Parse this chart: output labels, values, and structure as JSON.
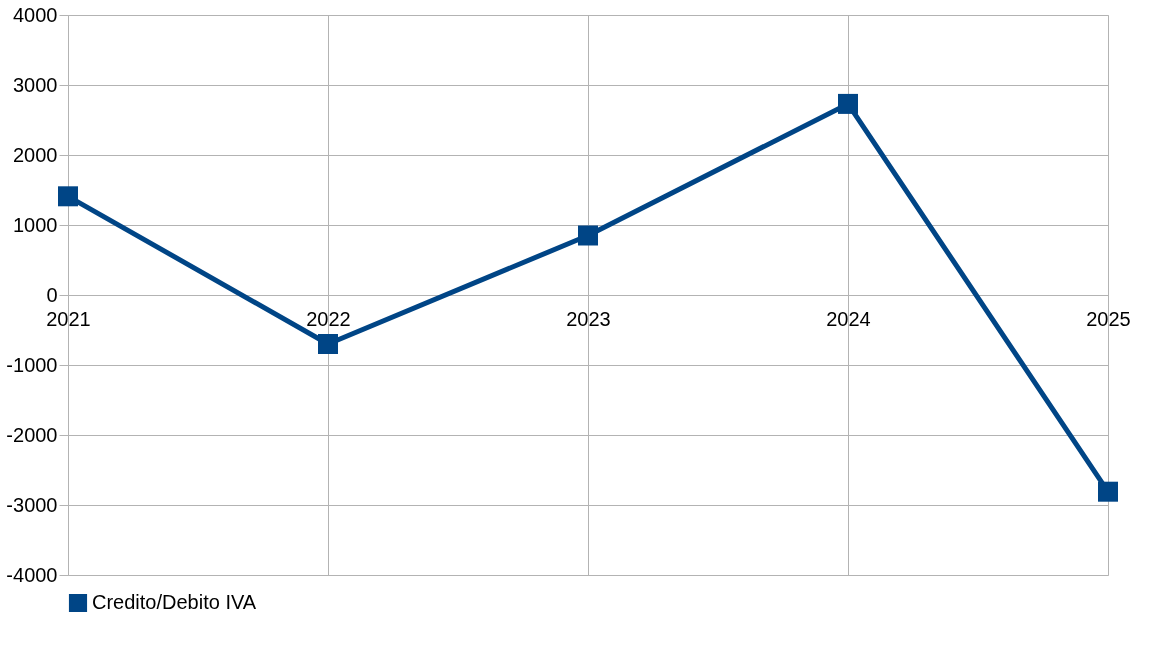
{
  "chart_data": {
    "type": "line",
    "categories": [
      "2021",
      "2022",
      "2023",
      "2024",
      "2025"
    ],
    "series": [
      {
        "name": "Credito/Debito IVA",
        "color": "#004586",
        "values": [
          1410,
          -700,
          850,
          2730,
          -2810
        ]
      }
    ],
    "ylim": [
      -4000,
      4000
    ],
    "yticks": [
      -4000,
      -3000,
      -2000,
      -1000,
      0,
      1000,
      2000,
      3000,
      4000
    ],
    "grid": true,
    "legend": "bottom",
    "marker": "square",
    "line_style": "solid"
  }
}
